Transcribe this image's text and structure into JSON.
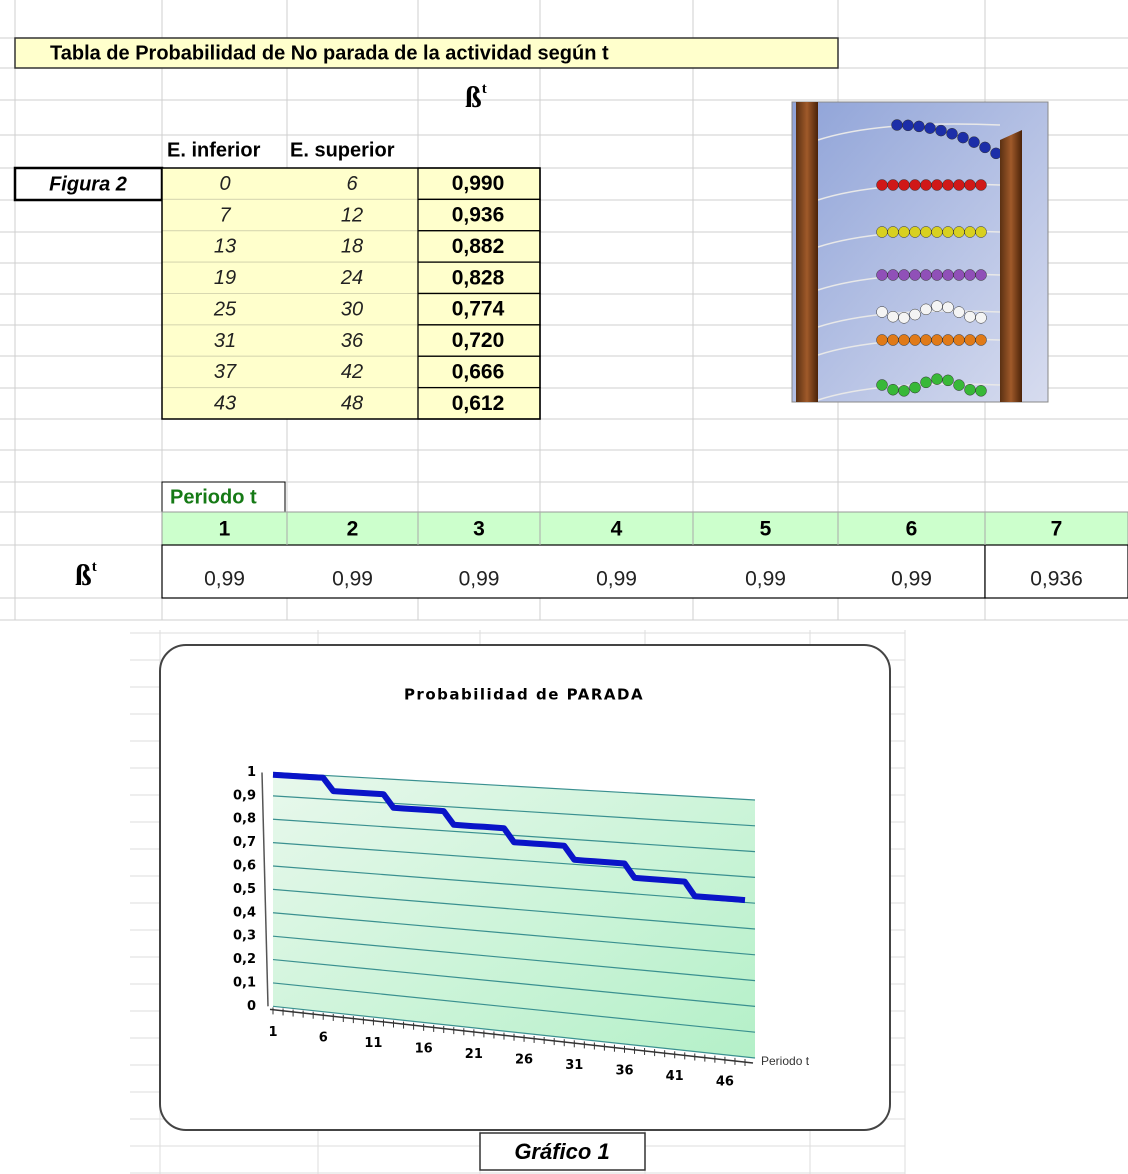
{
  "header": {
    "title": "Tabla de Probabilidad de  No parada de la actividad según t",
    "beta": {
      "base": "ß",
      "exp": "t"
    },
    "columns": [
      "E. inferior",
      "E. superior"
    ],
    "figure": "Figura 2"
  },
  "table": {
    "rows": [
      [
        "0",
        "6",
        "0,990"
      ],
      [
        "7",
        "12",
        "0,936"
      ],
      [
        "13",
        "18",
        "0,882"
      ],
      [
        "19",
        "24",
        "0,828"
      ],
      [
        "25",
        "30",
        "0,774"
      ],
      [
        "31",
        "36",
        "0,720"
      ],
      [
        "37",
        "42",
        "0,666"
      ],
      [
        "43",
        "48",
        "0,612"
      ]
    ]
  },
  "periods": {
    "label": "Periodo t",
    "beta": {
      "base": "ß",
      "exp": "t"
    },
    "headers": [
      "1",
      "2",
      "3",
      "4",
      "5",
      "6",
      "7"
    ],
    "values": [
      "0,99",
      "0,99",
      "0,99",
      "0,99",
      "0,99",
      "0,99",
      "0,936"
    ]
  },
  "chart_data": {
    "type": "line",
    "title": "Probabilidad de PARADA",
    "caption": "Gráfico 1",
    "x_label": "Periodo t",
    "color": "#0a14c8",
    "grid": true,
    "x": [
      1,
      2,
      3,
      4,
      5,
      6,
      7,
      8,
      9,
      10,
      11,
      12,
      13,
      14,
      15,
      16,
      17,
      18,
      19,
      20,
      21,
      22,
      23,
      24,
      25,
      26,
      27,
      28,
      29,
      30,
      31,
      32,
      33,
      34,
      35,
      36,
      37,
      38,
      39,
      40,
      41,
      42,
      43,
      44,
      45,
      46,
      47,
      48
    ],
    "values": [
      0.99,
      0.99,
      0.99,
      0.99,
      0.99,
      0.99,
      0.936,
      0.936,
      0.936,
      0.936,
      0.936,
      0.936,
      0.882,
      0.882,
      0.882,
      0.882,
      0.882,
      0.882,
      0.828,
      0.828,
      0.828,
      0.828,
      0.828,
      0.828,
      0.774,
      0.774,
      0.774,
      0.774,
      0.774,
      0.774,
      0.72,
      0.72,
      0.72,
      0.72,
      0.72,
      0.72,
      0.666,
      0.666,
      0.666,
      0.666,
      0.666,
      0.666,
      0.612,
      0.612,
      0.612,
      0.612,
      0.612,
      0.612
    ],
    "xlim": [
      1,
      48
    ],
    "xticks": [
      1,
      6,
      11,
      16,
      21,
      26,
      31,
      36,
      41,
      46
    ],
    "ylim": [
      0,
      1
    ],
    "yticks": [
      0,
      {
        "value": 0.1,
        "label": "0,1"
      },
      {
        "value": 0.2,
        "label": "0,2"
      },
      {
        "value": 0.3,
        "label": "0,3"
      },
      {
        "value": 0.4,
        "label": "0,4"
      },
      {
        "value": 0.5,
        "label": "0,5"
      },
      {
        "value": 0.6,
        "label": "0,6"
      },
      {
        "value": 0.7,
        "label": "0,7"
      },
      {
        "value": 0.8,
        "label": "0,8"
      },
      {
        "value": 0.9,
        "label": "0,9"
      },
      1
    ]
  }
}
